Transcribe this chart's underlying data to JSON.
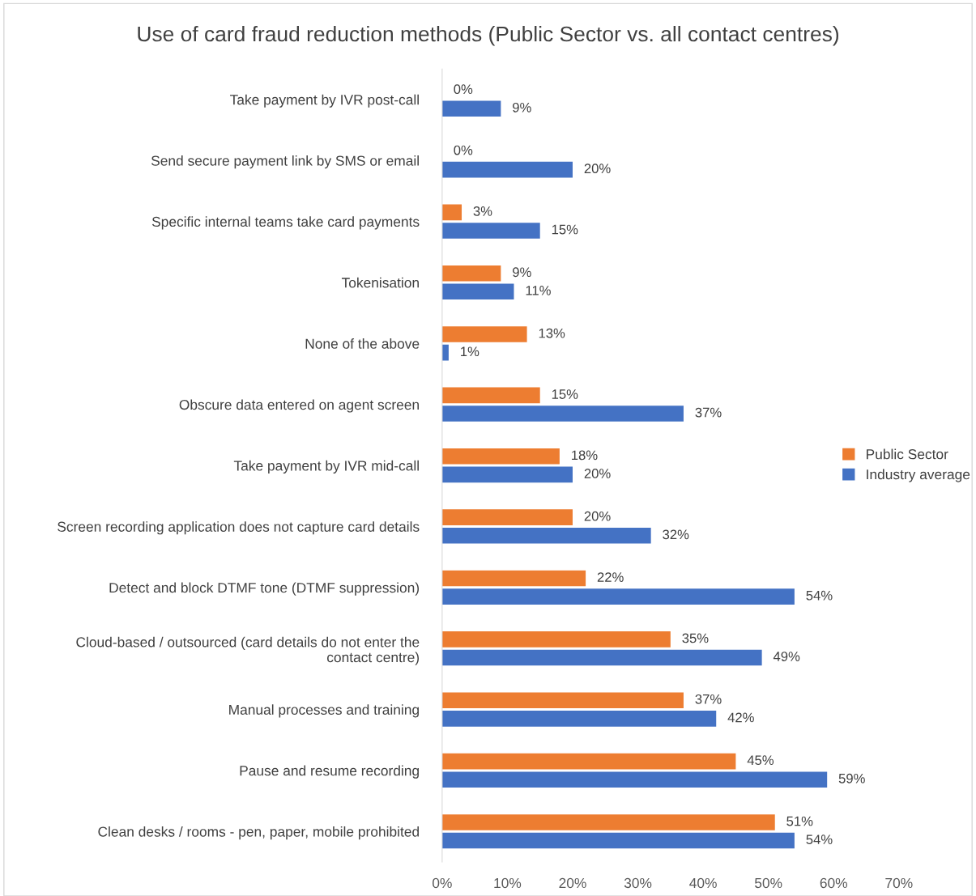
{
  "chart_data": {
    "type": "bar",
    "orientation": "horizontal",
    "title": "Use of card fraud reduction methods (Public Sector vs. all contact centres)",
    "categories": [
      "Take payment by IVR post-call",
      "Send secure payment link by SMS or email",
      "Specific internal teams take card payments",
      "Tokenisation",
      "None of the above",
      "Obscure data entered on agent screen",
      "Take payment by IVR mid-call",
      "Screen recording application does not capture card details",
      "Detect and block DTMF tone (DTMF suppression)",
      "Cloud-based / outsourced (card details do not enter the\ncontact centre)",
      "Manual processes and training",
      "Pause and resume recording",
      "Clean desks / rooms - pen, paper, mobile prohibited"
    ],
    "series": [
      {
        "name": "Public Sector",
        "color": "#ed7d31",
        "values": [
          0,
          0,
          3,
          9,
          13,
          15,
          18,
          20,
          22,
          35,
          37,
          45,
          51
        ],
        "value_labels": [
          "0%",
          "0%",
          "3%",
          "9%",
          "13%",
          "15%",
          "18%",
          "20%",
          "22%",
          "35%",
          "37%",
          "45%",
          "51%"
        ]
      },
      {
        "name": "Industry average",
        "color": "#4472c4",
        "values": [
          9,
          20,
          15,
          11,
          1,
          37,
          20,
          32,
          54,
          49,
          42,
          59,
          54
        ],
        "value_labels": [
          "9%",
          "20%",
          "15%",
          "11%",
          "1%",
          "37%",
          "20%",
          "32%",
          "54%",
          "49%",
          "42%",
          "59%",
          "54%"
        ]
      }
    ],
    "xlim": [
      0,
      70
    ],
    "xticks": [
      {
        "value": 0,
        "label": "0%"
      },
      {
        "value": 10,
        "label": "10%"
      },
      {
        "value": 20,
        "label": "20%"
      },
      {
        "value": 30,
        "label": "30%"
      },
      {
        "value": 40,
        "label": "40%"
      },
      {
        "value": 50,
        "label": "50%"
      },
      {
        "value": 60,
        "label": "60%"
      },
      {
        "value": 70,
        "label": "70%"
      }
    ],
    "grid": false,
    "legend": "right"
  }
}
